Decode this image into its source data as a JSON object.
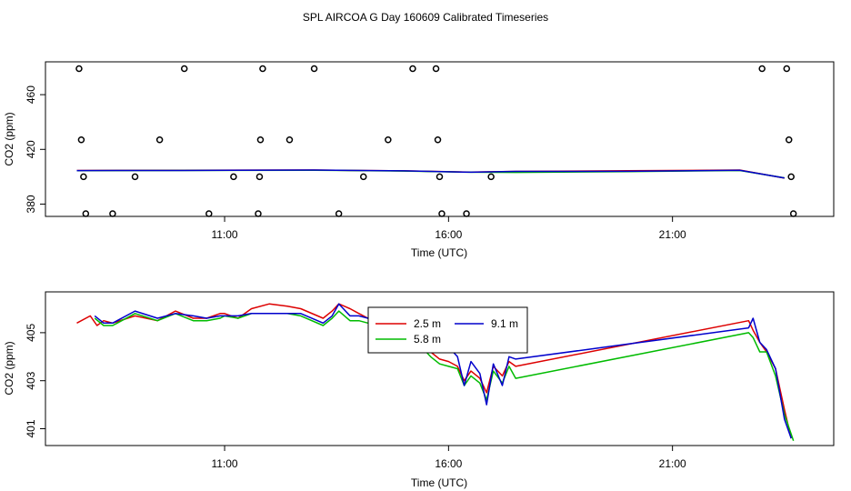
{
  "figure_title": "SPL AIRCOA G  Day 160609  Calibrated Timeseries",
  "colors": {
    "h2_5": "#dd0000",
    "h5_8": "#00bb00",
    "h9_1": "#0000cc",
    "axis": "#000000",
    "point": "#000000"
  },
  "chart_data": [
    {
      "type": "scatter+line",
      "xlabel": "Time (UTC)",
      "ylabel": "CO2 (ppm)",
      "xlim": [
        7.0,
        24.6
      ],
      "ylim": [
        371,
        484
      ],
      "xticks": [
        11,
        16,
        21
      ],
      "xtick_labels": [
        "11:00",
        "16:00",
        "21:00"
      ],
      "yticks": [
        380,
        420,
        460
      ],
      "ytick_labels": [
        "380",
        "420",
        "460"
      ],
      "points": [
        {
          "x": 7.75,
          "y": 479
        },
        {
          "x": 7.8,
          "y": 427
        },
        {
          "x": 7.85,
          "y": 400
        },
        {
          "x": 7.9,
          "y": 373
        },
        {
          "x": 8.5,
          "y": 373
        },
        {
          "x": 9.0,
          "y": 400
        },
        {
          "x": 9.55,
          "y": 427
        },
        {
          "x": 10.1,
          "y": 479
        },
        {
          "x": 10.65,
          "y": 373
        },
        {
          "x": 11.2,
          "y": 400
        },
        {
          "x": 11.75,
          "y": 373
        },
        {
          "x": 11.78,
          "y": 400
        },
        {
          "x": 11.8,
          "y": 427
        },
        {
          "x": 11.85,
          "y": 479
        },
        {
          "x": 12.45,
          "y": 427
        },
        {
          "x": 13.0,
          "y": 479
        },
        {
          "x": 13.55,
          "y": 373
        },
        {
          "x": 14.1,
          "y": 400
        },
        {
          "x": 14.65,
          "y": 427
        },
        {
          "x": 15.2,
          "y": 479
        },
        {
          "x": 15.72,
          "y": 479
        },
        {
          "x": 15.76,
          "y": 427
        },
        {
          "x": 15.8,
          "y": 400
        },
        {
          "x": 15.85,
          "y": 373
        },
        {
          "x": 16.4,
          "y": 373
        },
        {
          "x": 16.95,
          "y": 400
        },
        {
          "x": 23.0,
          "y": 479
        },
        {
          "x": 23.55,
          "y": 479
        },
        {
          "x": 23.6,
          "y": 427
        },
        {
          "x": 23.65,
          "y": 400
        },
        {
          "x": 23.7,
          "y": 373
        }
      ],
      "series": [
        {
          "name": "2.5 m",
          "x": [
            7.7,
            10.0,
            13.0,
            15.0,
            16.5,
            17.5,
            20.0,
            22.5,
            23.5
          ],
          "y": [
            404.6,
            404.7,
            404.9,
            404.3,
            403.4,
            403.9,
            404.4,
            404.9,
            399.0
          ]
        },
        {
          "name": "5.8 m",
          "x": [
            7.7,
            10.0,
            13.0,
            15.0,
            16.5,
            17.5,
            20.0,
            22.5,
            23.5
          ],
          "y": [
            404.4,
            404.6,
            404.8,
            404.2,
            403.3,
            403.2,
            403.7,
            404.6,
            399.2
          ]
        },
        {
          "name": "9.1 m",
          "x": [
            7.7,
            10.0,
            13.0,
            15.0,
            16.5,
            17.5,
            20.0,
            22.5,
            23.5
          ],
          "y": [
            404.5,
            404.6,
            404.9,
            404.3,
            403.3,
            403.9,
            404.0,
            404.7,
            399.1
          ]
        }
      ]
    },
    {
      "type": "line",
      "xlabel": "Time (UTC)",
      "ylabel": "CO2 (ppm)",
      "xlim": [
        7.0,
        24.6
      ],
      "ylim": [
        400.3,
        406.7
      ],
      "xticks": [
        11,
        16,
        21
      ],
      "xtick_labels": [
        "11:00",
        "16:00",
        "21:00"
      ],
      "yticks": [
        401,
        403,
        405
      ],
      "ytick_labels": [
        "401",
        "403",
        "405"
      ],
      "legend": [
        "2.5 m",
        "5.8 m",
        "9.1 m"
      ],
      "legend_position": "top-center",
      "series": [
        {
          "name": "2.5 m",
          "x": [
            7.7,
            8.0,
            8.15,
            8.3,
            8.5,
            9.0,
            9.5,
            9.9,
            10.3,
            10.6,
            10.9,
            11.0,
            11.3,
            11.6,
            12.0,
            12.4,
            12.7,
            13.2,
            13.4,
            13.55,
            13.8,
            14.0,
            14.2,
            14.45,
            14.7,
            14.9,
            15.1,
            15.3,
            15.45,
            15.6,
            15.8,
            16.0,
            16.2,
            16.35,
            16.5,
            16.7,
            16.85,
            17.0,
            17.2,
            17.35,
            17.5,
            22.7,
            22.8,
            22.95,
            23.1,
            23.3,
            23.5,
            23.65
          ],
          "y": [
            405.4,
            405.7,
            405.3,
            405.5,
            405.4,
            405.7,
            405.5,
            405.9,
            405.6,
            405.6,
            405.8,
            405.8,
            405.6,
            406.0,
            406.2,
            406.1,
            406.0,
            405.6,
            405.9,
            406.2,
            406.0,
            405.8,
            405.6,
            405.3,
            405.1,
            404.9,
            404.7,
            404.4,
            404.5,
            404.2,
            403.9,
            403.8,
            403.6,
            403.0,
            403.4,
            403.1,
            402.5,
            403.6,
            403.2,
            403.8,
            403.6,
            405.5,
            405.1,
            404.6,
            404.2,
            403.5,
            401.8,
            400.6
          ]
        },
        {
          "name": "5.8 m",
          "x": [
            8.1,
            8.3,
            8.5,
            9.0,
            9.5,
            9.9,
            10.3,
            10.6,
            10.9,
            11.0,
            11.3,
            11.6,
            12.0,
            12.4,
            12.7,
            13.2,
            13.4,
            13.55,
            13.8,
            14.0,
            14.2,
            14.45,
            14.7,
            14.9,
            15.1,
            15.3,
            15.45,
            15.6,
            15.8,
            16.0,
            16.2,
            16.35,
            16.5,
            16.7,
            16.85,
            17.0,
            17.2,
            17.35,
            17.5,
            22.7,
            22.8,
            22.95,
            23.1,
            23.3,
            23.5,
            23.7
          ],
          "y": [
            405.6,
            405.3,
            405.3,
            405.8,
            405.5,
            405.8,
            405.5,
            405.5,
            405.6,
            405.7,
            405.6,
            405.8,
            405.8,
            405.8,
            405.7,
            405.3,
            405.6,
            405.9,
            405.5,
            405.5,
            405.4,
            405.1,
            404.9,
            404.7,
            404.5,
            404.2,
            404.3,
            404.0,
            403.7,
            403.6,
            403.5,
            402.8,
            403.2,
            402.9,
            402.2,
            403.4,
            402.9,
            403.6,
            403.1,
            405.0,
            404.8,
            404.2,
            404.2,
            403.2,
            401.6,
            400.5
          ]
        },
        {
          "name": "9.1 m",
          "x": [
            8.1,
            8.3,
            8.5,
            9.0,
            9.5,
            9.9,
            10.3,
            10.6,
            10.9,
            11.0,
            11.3,
            11.6,
            12.0,
            12.4,
            12.7,
            13.2,
            13.4,
            13.55,
            13.8,
            14.0,
            14.2,
            14.45,
            14.7,
            14.9,
            15.1,
            15.3,
            15.45,
            15.6,
            15.8,
            16.0,
            16.2,
            16.35,
            16.5,
            16.7,
            16.85,
            17.0,
            17.2,
            17.35,
            17.5,
            22.7,
            22.8,
            22.95,
            23.1,
            23.3,
            23.5,
            23.65
          ],
          "y": [
            405.7,
            405.4,
            405.4,
            405.9,
            405.6,
            405.8,
            405.7,
            405.6,
            405.7,
            405.7,
            405.7,
            405.8,
            405.8,
            405.8,
            405.8,
            405.4,
            405.7,
            406.2,
            405.7,
            405.7,
            405.6,
            405.3,
            405.0,
            404.9,
            404.7,
            404.5,
            404.8,
            404.2,
            404.2,
            404.4,
            404.0,
            402.8,
            403.8,
            403.3,
            402.0,
            403.7,
            402.8,
            404.0,
            403.9,
            405.2,
            405.6,
            404.6,
            404.3,
            403.5,
            401.4,
            400.6
          ]
        }
      ]
    }
  ]
}
